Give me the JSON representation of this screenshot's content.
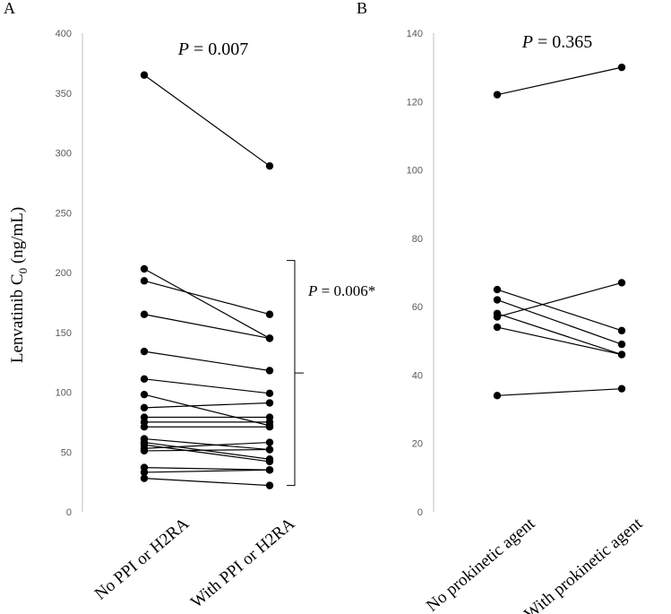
{
  "figure": {
    "y_axis_label": "Lenvatinib C",
    "y_axis_label_sub": "0",
    "y_axis_label_unit": " (ng/mL)"
  },
  "chart_data": [
    {
      "type": "line",
      "panel": "A",
      "title": "P = 0.007",
      "p_prefix": "P",
      "p_text": " = 0.007",
      "bracket_p_prefix": "P",
      "bracket_p_text": " = 0.006*",
      "categories": [
        "No PPI or H2RA",
        "With PPI or H2RA"
      ],
      "ylim": [
        0,
        400
      ],
      "yticks": [
        0,
        50,
        100,
        150,
        200,
        250,
        300,
        350,
        400
      ],
      "bracket_range": [
        22,
        210
      ],
      "pairs": [
        [
          365,
          289
        ],
        [
          203,
          145
        ],
        [
          193,
          165
        ],
        [
          165,
          145
        ],
        [
          134,
          118
        ],
        [
          111,
          99
        ],
        [
          98,
          72
        ],
        [
          87,
          91
        ],
        [
          79,
          79
        ],
        [
          75,
          75
        ],
        [
          71,
          71
        ],
        [
          61,
          52
        ],
        [
          58,
          44
        ],
        [
          56,
          42
        ],
        [
          53,
          58
        ],
        [
          51,
          52
        ],
        [
          37,
          35
        ],
        [
          33,
          35
        ],
        [
          28,
          22
        ]
      ]
    },
    {
      "type": "line",
      "panel": "B",
      "title": "P = 0.365",
      "p_prefix": "P",
      "p_text": " = 0.365",
      "categories": [
        "No prokinetic agent",
        "With prokinetic agent"
      ],
      "ylim": [
        0,
        140
      ],
      "yticks": [
        0,
        20,
        40,
        60,
        80,
        100,
        120,
        140
      ],
      "pairs": [
        [
          122,
          130
        ],
        [
          65,
          53
        ],
        [
          62,
          49
        ],
        [
          58,
          46
        ],
        [
          57,
          67
        ],
        [
          54,
          46
        ],
        [
          34,
          36
        ]
      ]
    }
  ]
}
